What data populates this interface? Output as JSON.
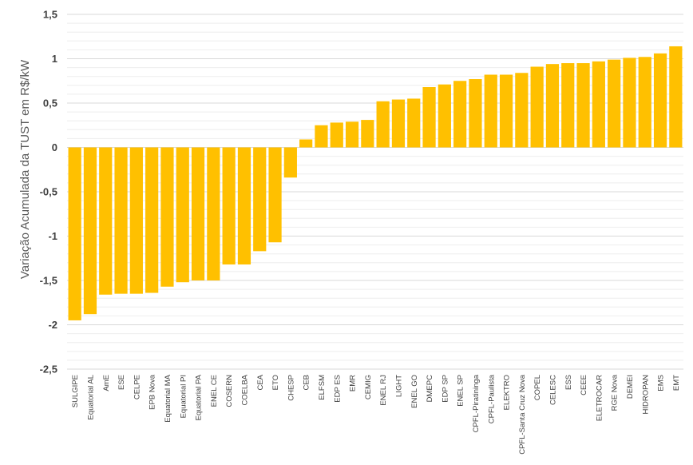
{
  "chart_data": {
    "type": "bar",
    "title": "",
    "xlabel": "",
    "ylabel": "Variação Acumulada da TUST em R$/kW",
    "ylim": [
      -2.5,
      1.5
    ],
    "y_major_step": 0.5,
    "y_minor_step": 0.1,
    "yticks": [
      "1,5",
      "1",
      "0,5",
      "0",
      "-0,5",
      "-1",
      "-1,5",
      "-2",
      "-2,5"
    ],
    "grid": true,
    "legend": "none",
    "bar_color": "#FFC000",
    "categories": [
      "SULGIPE",
      "Equatorial AL",
      "AmE",
      "ESE",
      "CELPE",
      "EPB Nova",
      "Equatorial MA",
      "Equatorial PI",
      "Equatorial PA",
      "ENEL CE",
      "COSERN",
      "COELBA",
      "CEA",
      "ETO",
      "CHESP",
      "CEB",
      "ELFSM",
      "EDP ES",
      "EMR",
      "CEMIG",
      "ENEL RJ",
      "LIGHT",
      "ENEL GO",
      "DMEPC",
      "EDP SP",
      "ENEL SP",
      "CPFL-Piratininga",
      "CPFL-Paulista",
      "ELEKTRO",
      "CPFL-Santa Cruz Nova",
      "COPEL",
      "CELESC",
      "ESS",
      "CEEE",
      "ELETROCAR",
      "RGE Nova",
      "DEMEI",
      "HIDROPAN",
      "EMS",
      "EMT"
    ],
    "values": [
      -1.95,
      -1.88,
      -1.66,
      -1.65,
      -1.65,
      -1.64,
      -1.57,
      -1.52,
      -1.5,
      -1.5,
      -1.32,
      -1.32,
      -1.17,
      -1.07,
      -0.34,
      0.09,
      0.25,
      0.28,
      0.29,
      0.31,
      0.52,
      0.54,
      0.55,
      0.68,
      0.71,
      0.75,
      0.77,
      0.82,
      0.82,
      0.84,
      0.91,
      0.94,
      0.95,
      0.95,
      0.97,
      0.99,
      1.01,
      1.02,
      1.06,
      1.14
    ]
  }
}
